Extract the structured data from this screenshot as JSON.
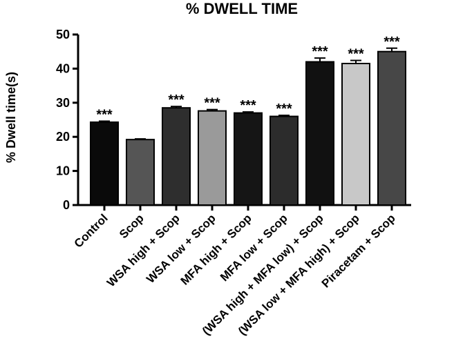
{
  "chart_data": {
    "type": "bar",
    "title": "% DWELL TIME",
    "xlabel": "",
    "ylabel": "% Dwell time(s)",
    "ylim": [
      0,
      50
    ],
    "yticks": [
      0,
      10,
      20,
      30,
      40,
      50
    ],
    "grid": false,
    "legend": "none",
    "categories": [
      "Control",
      "Scop",
      "WSA high + Scop",
      "WSA low + Scop",
      "MFA high + Scop",
      "MFA low + Scop",
      "(WSA high + MFA low) + Scop",
      "(WSA low + MFA high) + Scop",
      "Piracetam + Scop"
    ],
    "values": [
      24.3,
      19.2,
      28.5,
      27.6,
      27.0,
      26.0,
      42.0,
      41.5,
      45.0
    ],
    "errors": [
      0.3,
      0.2,
      0.4,
      0.4,
      0.3,
      0.3,
      1.1,
      0.9,
      1.0
    ],
    "significance": [
      "***",
      "",
      "***",
      "***",
      "***",
      "***",
      "***",
      "***",
      "***"
    ],
    "colors": [
      "#0a0a0a",
      "#555555",
      "#2e2e2e",
      "#9a9a9a",
      "#151515",
      "#2c2c2c",
      "#111111",
      "#c8c8c8",
      "#474747"
    ]
  }
}
